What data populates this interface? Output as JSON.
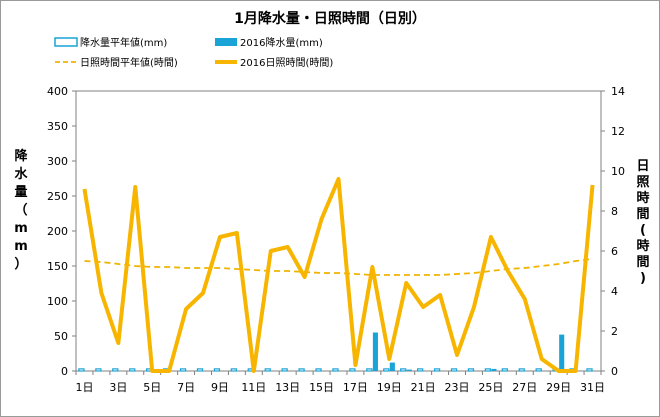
{
  "chart_data": {
    "type": "bar+line",
    "title": "1月降水量・日照時間（日別）",
    "x": [
      "1日",
      "2日",
      "3日",
      "4日",
      "5日",
      "6日",
      "7日",
      "8日",
      "9日",
      "10日",
      "11日",
      "12日",
      "13日",
      "14日",
      "15日",
      "16日",
      "17日",
      "18日",
      "19日",
      "20日",
      "21日",
      "22日",
      "23日",
      "24日",
      "25日",
      "26日",
      "27日",
      "28日",
      "29日",
      "30日",
      "31日"
    ],
    "x_tick_labels": [
      "1日",
      "3日",
      "5日",
      "7日",
      "9日",
      "11日",
      "13日",
      "15日",
      "17日",
      "19日",
      "21日",
      "23日",
      "25日",
      "27日",
      "29日",
      "31日"
    ],
    "ylabel_left": "降水量（mm）",
    "ylabel_right": "日照時間(時間)",
    "ylim_left": [
      0,
      400
    ],
    "yticks_left": [
      0,
      50,
      100,
      150,
      200,
      250,
      300,
      350,
      400
    ],
    "ylim_right": [
      0,
      14
    ],
    "yticks_right": [
      0,
      2,
      4,
      6,
      8,
      10,
      12,
      14
    ],
    "legend_placement": "top",
    "series": [
      {
        "name": "降水量平年値(mm)",
        "kind": "bar-outline",
        "axis": "left",
        "color": "#1aa3d6",
        "values": [
          3,
          3,
          3,
          3,
          3,
          3,
          3,
          3,
          3,
          3,
          3,
          3,
          3,
          3,
          3,
          3,
          3,
          3,
          3,
          3,
          3,
          3,
          3,
          3,
          3,
          3,
          3,
          3,
          3,
          3,
          3
        ]
      },
      {
        "name": "2016降水量(mm)",
        "kind": "bar",
        "axis": "left",
        "color": "#1aa3d6",
        "values": [
          0,
          0,
          0,
          0,
          0,
          0,
          0,
          0,
          0,
          0,
          0,
          0,
          0,
          0,
          0,
          0,
          0,
          55,
          12,
          2,
          0,
          0,
          0,
          0,
          3,
          0,
          0,
          0,
          52,
          0,
          0
        ]
      },
      {
        "name": "日照時間平年値(時間)",
        "kind": "line-dashed",
        "axis": "right",
        "color": "#f0b400",
        "values": [
          5.5,
          5.45,
          5.35,
          5.25,
          5.2,
          5.2,
          5.15,
          5.15,
          5.15,
          5.1,
          5.05,
          5.0,
          5.0,
          4.95,
          4.9,
          4.9,
          4.85,
          4.8,
          4.8,
          4.8,
          4.8,
          4.8,
          4.85,
          4.9,
          5.0,
          5.1,
          5.15,
          5.25,
          5.35,
          5.5,
          5.6
        ]
      },
      {
        "name": "2016日照時間(時間)",
        "kind": "line",
        "axis": "right",
        "color": "#f7b500",
        "values": [
          9.1,
          3.9,
          1.4,
          9.2,
          0,
          0,
          3.1,
          3.9,
          6.7,
          6.9,
          0,
          6.0,
          6.2,
          4.7,
          7.6,
          9.6,
          0.3,
          5.2,
          0.6,
          4.4,
          3.2,
          3.8,
          0.8,
          3.2,
          6.7,
          5.0,
          3.6,
          0.6,
          0,
          0,
          9.3
        ]
      }
    ]
  }
}
